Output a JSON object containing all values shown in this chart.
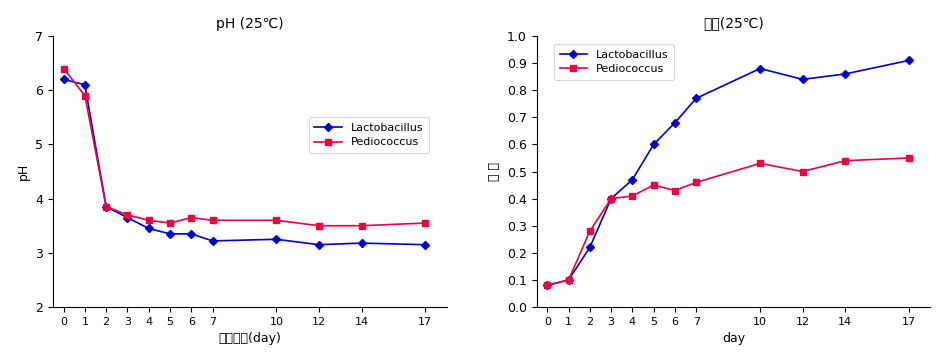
{
  "days": [
    0,
    1,
    2,
    3,
    4,
    5,
    6,
    7,
    10,
    12,
    14,
    17
  ],
  "ph_lacto": [
    6.2,
    6.1,
    3.85,
    3.65,
    3.45,
    3.35,
    3.35,
    3.22,
    3.25,
    3.15,
    3.18,
    3.15
  ],
  "ph_pedio": [
    6.4,
    5.9,
    3.85,
    3.7,
    3.6,
    3.55,
    3.65,
    3.6,
    3.6,
    3.5,
    3.5,
    3.55
  ],
  "acid_lacto": [
    0.08,
    0.1,
    0.22,
    0.4,
    0.47,
    0.6,
    0.68,
    0.77,
    0.88,
    0.84,
    0.86,
    0.91
  ],
  "acid_pedio": [
    0.08,
    0.1,
    0.28,
    0.4,
    0.41,
    0.45,
    0.43,
    0.46,
    0.53,
    0.5,
    0.54,
    0.55
  ],
  "ph_title": "pH (25℃)",
  "acid_title": "총산(25℃)",
  "ph_ylabel": "pH",
  "acid_ylabel": "총 산",
  "ph_xlabel": "발효기간(day)",
  "acid_xlabel": "day",
  "lacto_label": "Lactobacillus",
  "pedio_label": "Pediococcus",
  "lacto_color": "#0000CC",
  "pedio_color": "#EE0044",
  "ph_ylim": [
    2,
    7
  ],
  "ph_yticks": [
    2,
    3,
    4,
    5,
    6,
    7
  ],
  "acid_ylim": [
    0.0,
    1.0
  ],
  "acid_yticks": [
    0.0,
    0.1,
    0.2,
    0.3,
    0.4,
    0.5,
    0.6,
    0.7,
    0.8,
    0.9,
    1.0
  ]
}
